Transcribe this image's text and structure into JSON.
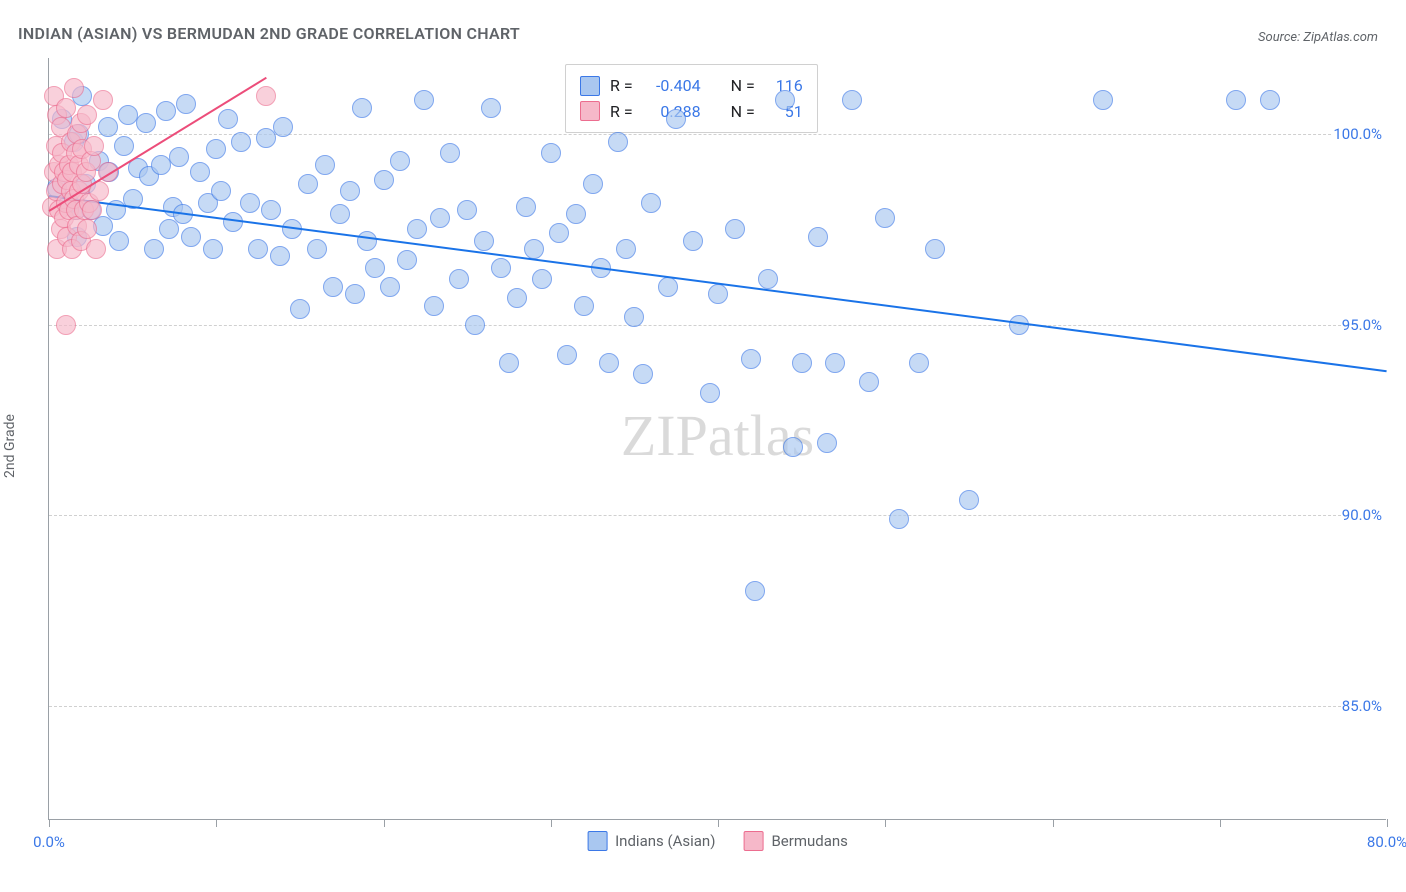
{
  "title": "INDIAN (ASIAN) VS BERMUDAN 2ND GRADE CORRELATION CHART",
  "source": "Source: ZipAtlas.com",
  "ylabel": "2nd Grade",
  "watermark": {
    "bold": "ZIP",
    "light": "atlas"
  },
  "chart": {
    "type": "scatter-with-regression",
    "xlim": [
      0,
      80
    ],
    "ylim": [
      82,
      102
    ],
    "xtick_positions": [
      0,
      10,
      20,
      30,
      40,
      50,
      60,
      70,
      80
    ],
    "xtick_labels": {
      "0": "0.0%",
      "80": "80.0%"
    },
    "ytick_positions": [
      85,
      90,
      95,
      100
    ],
    "ytick_labels": [
      "85.0%",
      "90.0%",
      "95.0%",
      "100.0%"
    ],
    "background_color": "#ffffff",
    "grid_color": "#d0d0d0",
    "axis_color": "#9aa0a6",
    "tick_label_color": "#3b78e7",
    "marker_radius": 9,
    "marker_border_width": 1,
    "series": [
      {
        "name": "Indians (Asian)",
        "fill_color": "#a9c7f0",
        "fill_opacity": 0.65,
        "stroke_color": "#3b78e7",
        "R": -0.404,
        "N": 116,
        "trendline": {
          "x1": 0,
          "y1": 98.4,
          "x2": 80,
          "y2": 93.8,
          "color": "#1a73e8",
          "width": 2
        },
        "points": [
          [
            0.5,
            98.6
          ],
          [
            0.8,
            100.4
          ],
          [
            1.2,
            98.2
          ],
          [
            1.5,
            99.8
          ],
          [
            1.6,
            98.0
          ],
          [
            1.7,
            97.3
          ],
          [
            1.8,
            100.0
          ],
          [
            2.0,
            101.0
          ],
          [
            2.2,
            98.7
          ],
          [
            2.5,
            98.0
          ],
          [
            3.0,
            99.3
          ],
          [
            3.2,
            97.6
          ],
          [
            3.5,
            100.2
          ],
          [
            3.6,
            99.0
          ],
          [
            4.0,
            98.0
          ],
          [
            4.2,
            97.2
          ],
          [
            4.5,
            99.7
          ],
          [
            4.7,
            100.5
          ],
          [
            5.0,
            98.3
          ],
          [
            5.3,
            99.1
          ],
          [
            5.8,
            100.3
          ],
          [
            6.0,
            98.9
          ],
          [
            6.3,
            97.0
          ],
          [
            6.7,
            99.2
          ],
          [
            7.0,
            100.6
          ],
          [
            7.2,
            97.5
          ],
          [
            7.4,
            98.1
          ],
          [
            7.8,
            99.4
          ],
          [
            8.0,
            97.9
          ],
          [
            8.2,
            100.8
          ],
          [
            8.5,
            97.3
          ],
          [
            9.0,
            99.0
          ],
          [
            9.5,
            98.2
          ],
          [
            9.8,
            97.0
          ],
          [
            10.0,
            99.6
          ],
          [
            10.3,
            98.5
          ],
          [
            10.7,
            100.4
          ],
          [
            11.0,
            97.7
          ],
          [
            11.5,
            99.8
          ],
          [
            12.0,
            98.2
          ],
          [
            12.5,
            97.0
          ],
          [
            13.0,
            99.9
          ],
          [
            13.3,
            98.0
          ],
          [
            13.8,
            96.8
          ],
          [
            14.0,
            100.2
          ],
          [
            14.5,
            97.5
          ],
          [
            15.0,
            95.4
          ],
          [
            15.5,
            98.7
          ],
          [
            16.0,
            97.0
          ],
          [
            16.5,
            99.2
          ],
          [
            17.0,
            96.0
          ],
          [
            17.4,
            97.9
          ],
          [
            18.0,
            98.5
          ],
          [
            18.3,
            95.8
          ],
          [
            18.7,
            100.7
          ],
          [
            19.0,
            97.2
          ],
          [
            19.5,
            96.5
          ],
          [
            20.0,
            98.8
          ],
          [
            20.4,
            96.0
          ],
          [
            21.0,
            99.3
          ],
          [
            21.4,
            96.7
          ],
          [
            22.0,
            97.5
          ],
          [
            22.4,
            100.9
          ],
          [
            23.0,
            95.5
          ],
          [
            23.4,
            97.8
          ],
          [
            24.0,
            99.5
          ],
          [
            24.5,
            96.2
          ],
          [
            25.0,
            98.0
          ],
          [
            25.5,
            95.0
          ],
          [
            26.0,
            97.2
          ],
          [
            26.4,
            100.7
          ],
          [
            27.0,
            96.5
          ],
          [
            27.5,
            94.0
          ],
          [
            28.0,
            95.7
          ],
          [
            28.5,
            98.1
          ],
          [
            29.0,
            97.0
          ],
          [
            29.5,
            96.2
          ],
          [
            30.0,
            99.5
          ],
          [
            30.5,
            97.4
          ],
          [
            31.0,
            94.2
          ],
          [
            31.5,
            97.9
          ],
          [
            32.0,
            95.5
          ],
          [
            32.5,
            98.7
          ],
          [
            33.0,
            96.5
          ],
          [
            33.5,
            94.0
          ],
          [
            34.0,
            99.8
          ],
          [
            34.5,
            97.0
          ],
          [
            35.0,
            95.2
          ],
          [
            35.5,
            93.7
          ],
          [
            36.0,
            98.2
          ],
          [
            37.0,
            96.0
          ],
          [
            37.5,
            100.4
          ],
          [
            38.5,
            97.2
          ],
          [
            39.5,
            93.2
          ],
          [
            40.0,
            95.8
          ],
          [
            41.0,
            97.5
          ],
          [
            42.0,
            94.1
          ],
          [
            42.2,
            88.0
          ],
          [
            43.0,
            96.2
          ],
          [
            44.0,
            100.9
          ],
          [
            44.5,
            91.8
          ],
          [
            45.0,
            94.0
          ],
          [
            46.0,
            97.3
          ],
          [
            46.5,
            91.9
          ],
          [
            47.0,
            94.0
          ],
          [
            48.0,
            100.9
          ],
          [
            49.0,
            93.5
          ],
          [
            50.0,
            97.8
          ],
          [
            50.8,
            89.9
          ],
          [
            52.0,
            94.0
          ],
          [
            53.0,
            97.0
          ],
          [
            55.0,
            90.4
          ],
          [
            63.0,
            100.9
          ],
          [
            71.0,
            100.9
          ],
          [
            73.0,
            100.9
          ],
          [
            58.0,
            95.0
          ]
        ]
      },
      {
        "name": "Bermudans",
        "fill_color": "#f6b8c9",
        "fill_opacity": 0.65,
        "stroke_color": "#ec6d8f",
        "R": 0.288,
        "N": 51,
        "trendline": {
          "x1": 0,
          "y1": 98.0,
          "x2": 13,
          "y2": 101.5,
          "color": "#ec4d7a",
          "width": 2
        },
        "points": [
          [
            0.2,
            98.1
          ],
          [
            0.3,
            99.0
          ],
          [
            0.3,
            101.0
          ],
          [
            0.4,
            98.5
          ],
          [
            0.4,
            99.7
          ],
          [
            0.5,
            97.0
          ],
          [
            0.5,
            100.5
          ],
          [
            0.6,
            98.0
          ],
          [
            0.6,
            99.2
          ],
          [
            0.7,
            97.5
          ],
          [
            0.7,
            100.2
          ],
          [
            0.8,
            98.7
          ],
          [
            0.8,
            99.5
          ],
          [
            0.9,
            97.8
          ],
          [
            0.9,
            99.0
          ],
          [
            1.0,
            98.2
          ],
          [
            1.0,
            100.7
          ],
          [
            1.1,
            98.8
          ],
          [
            1.1,
            97.3
          ],
          [
            1.2,
            99.2
          ],
          [
            1.2,
            98.0
          ],
          [
            1.3,
            99.8
          ],
          [
            1.3,
            98.5
          ],
          [
            1.4,
            97.0
          ],
          [
            1.4,
            99.0
          ],
          [
            1.5,
            98.3
          ],
          [
            1.5,
            101.2
          ],
          [
            1.6,
            99.5
          ],
          [
            1.6,
            98.0
          ],
          [
            1.7,
            100.0
          ],
          [
            1.7,
            97.6
          ],
          [
            1.8,
            99.2
          ],
          [
            1.8,
            98.5
          ],
          [
            1.9,
            100.3
          ],
          [
            1.9,
            97.2
          ],
          [
            2.0,
            98.7
          ],
          [
            2.0,
            99.6
          ],
          [
            2.1,
            98.0
          ],
          [
            2.2,
            99.0
          ],
          [
            2.3,
            97.5
          ],
          [
            2.3,
            100.5
          ],
          [
            2.4,
            98.2
          ],
          [
            2.5,
            99.3
          ],
          [
            2.6,
            98.0
          ],
          [
            2.7,
            99.7
          ],
          [
            2.8,
            97.0
          ],
          [
            3.0,
            98.5
          ],
          [
            3.2,
            100.9
          ],
          [
            3.5,
            99.0
          ],
          [
            1.0,
            95.0
          ],
          [
            13.0,
            101.0
          ]
        ]
      }
    ]
  },
  "bottom_legend": {
    "items": [
      {
        "label": "Indians (Asian)",
        "fill": "#a9c7f0",
        "stroke": "#3b78e7"
      },
      {
        "label": "Bermudans",
        "fill": "#f6b8c9",
        "stroke": "#ec6d8f"
      }
    ]
  },
  "stats_box": {
    "rows": [
      {
        "swatch_fill": "#a9c7f0",
        "swatch_stroke": "#3b78e7",
        "r_label": "R =",
        "r_val": "-0.404",
        "n_label": "N =",
        "n_val": "116"
      },
      {
        "swatch_fill": "#f6b8c9",
        "swatch_stroke": "#ec6d8f",
        "r_label": "R =",
        "r_val": "0.288",
        "n_label": "N =",
        "n_val": "51"
      }
    ]
  }
}
